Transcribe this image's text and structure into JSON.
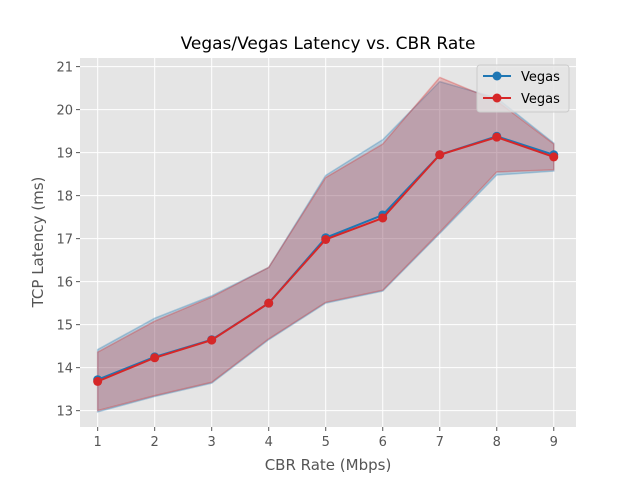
{
  "chart_data": {
    "type": "line",
    "title": "Vegas/Vegas Latency vs. CBR Rate",
    "xlabel": "CBR Rate (Mbps)",
    "ylabel": "TCP Latency (ms)",
    "x": [
      1,
      2,
      3,
      4,
      5,
      6,
      7,
      8,
      9
    ],
    "xlim": [
      0.69,
      9.39
    ],
    "ylim": [
      12.62,
      21.2
    ],
    "xticks": [
      1,
      2,
      3,
      4,
      5,
      6,
      7,
      8,
      9
    ],
    "yticks": [
      13,
      14,
      15,
      16,
      17,
      18,
      19,
      20,
      21
    ],
    "grid": true,
    "legend_position": "top-right",
    "series": [
      {
        "name": "Vegas",
        "color": "#1f77b4",
        "values": [
          13.72,
          14.25,
          14.65,
          15.5,
          17.02,
          17.55,
          18.95,
          19.38,
          18.95
        ],
        "band_upper": [
          14.42,
          15.15,
          15.67,
          16.33,
          18.47,
          19.3,
          20.65,
          20.27,
          19.22
        ],
        "band_lower": [
          12.97,
          13.33,
          13.64,
          14.65,
          15.5,
          15.78,
          17.12,
          18.48,
          18.57
        ]
      },
      {
        "name": "Vegas",
        "color": "#d62728",
        "values": [
          13.68,
          14.23,
          14.64,
          15.5,
          16.98,
          17.48,
          18.95,
          19.36,
          18.9
        ],
        "band_upper": [
          14.36,
          15.08,
          15.64,
          16.33,
          18.42,
          19.2,
          20.75,
          20.2,
          19.2
        ],
        "band_lower": [
          13.0,
          13.35,
          13.66,
          14.67,
          15.52,
          15.8,
          17.15,
          18.55,
          18.6
        ]
      }
    ]
  }
}
